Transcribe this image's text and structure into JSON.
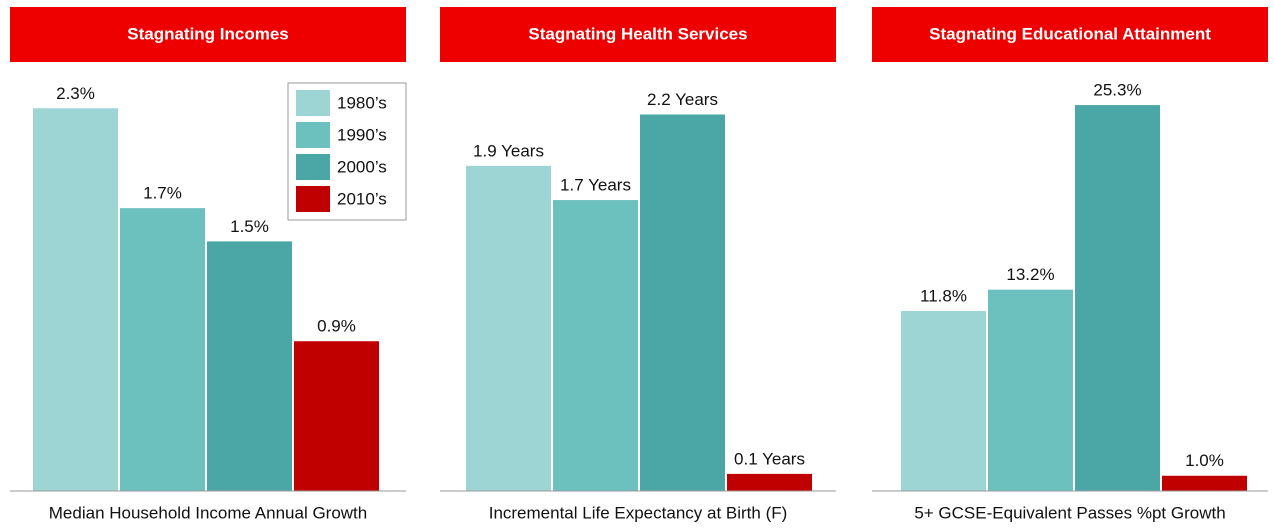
{
  "chart_data": [
    {
      "type": "bar",
      "title": "Stagnating Incomes",
      "xlabel": "Median Household Income Annual Growth",
      "categories": [
        "1980’s",
        "1990’s",
        "2000’s",
        "2010’s"
      ],
      "values": [
        2.3,
        1.7,
        1.5,
        0.9
      ],
      "value_labels": [
        "2.3%",
        "1.7%",
        "1.5%",
        "0.9%"
      ],
      "colors": [
        "#9dd5d5",
        "#6cc1bf",
        "#4aa7a6",
        "#c00000"
      ],
      "ylim": [
        0,
        2.53
      ],
      "legend": "top-right"
    },
    {
      "type": "bar",
      "title": "Stagnating Health Services",
      "xlabel": "Incremental Life Expectancy at Birth (F)",
      "values": [
        1.9,
        1.7,
        2.2,
        0.1
      ],
      "value_labels": [
        "1.9 Years",
        "1.7 Years",
        "2.2 Years",
        "0.1 Years"
      ],
      "colors": [
        "#9dd5d5",
        "#6cc1bf",
        "#4aa7a6",
        "#c00000"
      ],
      "ylim": [
        0,
        2.46
      ]
    },
    {
      "type": "bar",
      "title": "Stagnating Educational Attainment",
      "xlabel": "5+ GCSE-Equivalent Passes %pt Growth",
      "values": [
        11.8,
        13.2,
        25.3,
        1.0
      ],
      "value_labels": [
        "11.8%",
        "13.2%",
        "25.3%",
        "1.0%"
      ],
      "colors": [
        "#9dd5d5",
        "#6cc1bf",
        "#4aa7a6",
        "#c00000"
      ],
      "ylim": [
        0,
        27.6
      ]
    }
  ]
}
